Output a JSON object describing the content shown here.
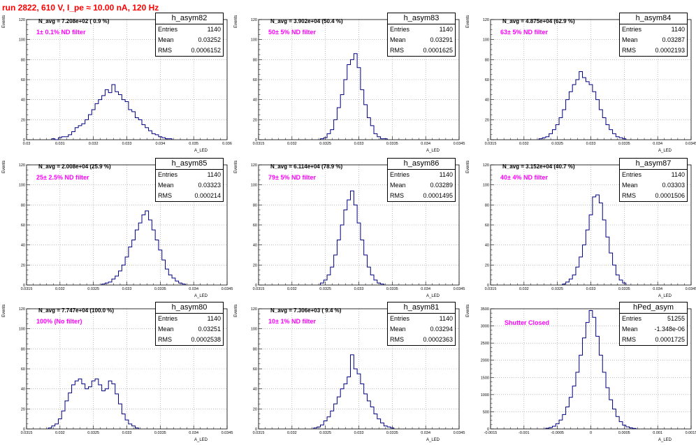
{
  "header": {
    "run_title": "run 2822,   610 V, I_pe ≈ 10.00 nA, 120 Hz"
  },
  "panels": [
    {
      "stats_title": "h_asym82",
      "navg": "N_avg = 7.208e+02 ( 0.9 %)",
      "filter": "1± 0.1% ND filter",
      "entries_label": "Entries",
      "entries": "1140",
      "mean_label": "Mean",
      "mean": "0.03252",
      "rms_label": "RMS",
      "rms": "0.0006152",
      "ylabel": "Events",
      "xlabel": "A_LED"
    },
    {
      "stats_title": "h_asym83",
      "navg": "N_avg = 3.902e+04 (50.4 %)",
      "filter": "50± 5% ND filter",
      "entries_label": "Entries",
      "entries": "1140",
      "mean_label": "Mean",
      "mean": "0.03291",
      "rms_label": "RMS",
      "rms": "0.0001625",
      "ylabel": "Events",
      "xlabel": "A_LED"
    },
    {
      "stats_title": "h_asym84",
      "navg": "N_avg = 4.875e+04 (62.9 %)",
      "filter": "63± 5% ND filter",
      "entries_label": "Entries",
      "entries": "1140",
      "mean_label": "Mean",
      "mean": "0.03287",
      "rms_label": "RMS",
      "rms": "0.0002193",
      "ylabel": "Events",
      "xlabel": "A_LED"
    },
    {
      "stats_title": "h_asym85",
      "navg": "N_avg = 2.008e+04 (25.9 %)",
      "filter": "25± 2.5% ND filter",
      "entries_label": "Entries",
      "entries": "1140",
      "mean_label": "Mean",
      "mean": "0.03323",
      "rms_label": "RMS",
      "rms": "0.000214",
      "ylabel": "Events",
      "xlabel": "A_LED"
    },
    {
      "stats_title": "h_asym86",
      "navg": "N_avg = 6.114e+04 (78.9 %)",
      "filter": "79± 5% ND filter",
      "entries_label": "Entries",
      "entries": "1140",
      "mean_label": "Mean",
      "mean": "0.03289",
      "rms_label": "RMS",
      "rms": "0.0001495",
      "ylabel": "Events",
      "xlabel": "A_LED"
    },
    {
      "stats_title": "h_asym87",
      "navg": "N_avg = 3.152e+04 (40.7 %)",
      "filter": "40± 4% ND filter",
      "entries_label": "Entries",
      "entries": "1140",
      "mean_label": "Mean",
      "mean": "0.03303",
      "rms_label": "RMS",
      "rms": "0.0001506",
      "ylabel": "Events",
      "xlabel": "A_LED"
    },
    {
      "stats_title": "h_asym80",
      "navg": "N_avg = 7.747e+04 (100.0 %)",
      "filter": "100% (No filter)",
      "entries_label": "Entries",
      "entries": "1140",
      "mean_label": "Mean",
      "mean": "0.03251",
      "rms_label": "RMS",
      "rms": "0.0002538",
      "ylabel": "Events",
      "xlabel": "A_LED"
    },
    {
      "stats_title": "h_asym81",
      "navg": "N_avg = 7.306e+03 ( 9.4 %)",
      "filter": "10± 1% ND filter",
      "entries_label": "Entries",
      "entries": "1140",
      "mean_label": "Mean",
      "mean": "0.03294",
      "rms_label": "RMS",
      "rms": "0.0002363",
      "ylabel": "Events",
      "xlabel": "A_LED"
    },
    {
      "stats_title": "hPed_asym",
      "navg": "",
      "filter": "Shutter Closed",
      "entries_label": "Entries",
      "entries": "51255",
      "mean_label": "Mean",
      "mean": "-1.348e-06",
      "rms_label": "RMS",
      "rms": "0.0001725",
      "ylabel": "Events",
      "xlabel": "A_LED"
    }
  ],
  "chart_data": [
    {
      "type": "bar",
      "name": "h_asym82",
      "xlim": [
        0.03,
        0.036
      ],
      "ylim": [
        0,
        120
      ],
      "xticks": [
        0.03,
        0.031,
        0.032,
        0.033,
        0.034,
        0.035,
        0.036
      ],
      "xtick_labels": [
        "0.03",
        "0.031",
        "0.032",
        "0.033",
        "0.034",
        "0.035",
        "0.036"
      ],
      "yticks": [
        0,
        20,
        40,
        60,
        80,
        100,
        120
      ],
      "grid": true,
      "color": "#000080",
      "bins": {
        "x": [
          0.0308,
          0.0309,
          0.031,
          0.0311,
          0.0312,
          0.0313,
          0.0314,
          0.0315,
          0.0316,
          0.0317,
          0.0318,
          0.0319,
          0.032,
          0.0321,
          0.0322,
          0.0323,
          0.0324,
          0.0325,
          0.0326,
          0.0327,
          0.0328,
          0.0329,
          0.033,
          0.0331,
          0.0332,
          0.0333,
          0.0334,
          0.0335,
          0.0336,
          0.0337,
          0.0338,
          0.0339,
          0.034,
          0.0341,
          0.0342,
          0.0343
        ],
        "y": [
          1,
          0,
          2,
          3,
          3,
          5,
          8,
          12,
          14,
          16,
          20,
          25,
          30,
          36,
          40,
          44,
          50,
          47,
          55,
          48,
          45,
          40,
          38,
          30,
          28,
          22,
          20,
          15,
          12,
          9,
          6,
          5,
          3,
          2,
          1,
          1
        ]
      }
    },
    {
      "type": "bar",
      "name": "h_asym83",
      "xlim": [
        0.0315,
        0.0345
      ],
      "ylim": [
        0,
        120
      ],
      "xticks": [
        0.0315,
        0.032,
        0.0325,
        0.033,
        0.0335,
        0.034,
        0.0345
      ],
      "xtick_labels": [
        "0.0315",
        "0.032",
        "0.0325",
        "0.033",
        "0.0335",
        "0.034",
        "0.0345"
      ],
      "yticks": [
        0,
        20,
        40,
        60,
        80,
        100,
        120
      ],
      "grid": true,
      "color": "#000080",
      "bins": {
        "x": [
          0.03245,
          0.0325,
          0.03255,
          0.0326,
          0.03265,
          0.0327,
          0.03275,
          0.0328,
          0.03285,
          0.0329,
          0.03295,
          0.033,
          0.03305,
          0.0331,
          0.03315,
          0.0332,
          0.03325,
          0.0333,
          0.03335,
          0.0334
        ],
        "y": [
          1,
          2,
          6,
          10,
          20,
          32,
          45,
          60,
          75,
          80,
          86,
          72,
          50,
          35,
          22,
          14,
          6,
          3,
          1,
          1
        ]
      }
    },
    {
      "type": "bar",
      "name": "h_asym84",
      "xlim": [
        0.0315,
        0.0345
      ],
      "ylim": [
        0,
        120
      ],
      "xticks": [
        0.0315,
        0.032,
        0.0325,
        0.033,
        0.0335,
        0.034,
        0.0345
      ],
      "xtick_labels": [
        "0.0315",
        "0.032",
        "0.0325",
        "0.033",
        "0.0335",
        "0.034",
        "0.0345"
      ],
      "yticks": [
        0,
        20,
        40,
        60,
        80,
        100,
        120
      ],
      "grid": true,
      "color": "#000080",
      "bins": {
        "x": [
          0.03225,
          0.0323,
          0.03235,
          0.0324,
          0.03245,
          0.0325,
          0.03255,
          0.0326,
          0.03265,
          0.0327,
          0.03275,
          0.0328,
          0.03285,
          0.0329,
          0.03295,
          0.033,
          0.03305,
          0.0331,
          0.03315,
          0.0332,
          0.03325,
          0.0333,
          0.03335,
          0.0334,
          0.03345,
          0.0335
        ],
        "y": [
          1,
          2,
          3,
          6,
          10,
          15,
          22,
          30,
          40,
          48,
          55,
          60,
          68,
          62,
          58,
          55,
          48,
          40,
          30,
          22,
          15,
          10,
          6,
          3,
          2,
          1
        ]
      }
    },
    {
      "type": "bar",
      "name": "h_asym85",
      "xlim": [
        0.0315,
        0.0345
      ],
      "ylim": [
        0,
        120
      ],
      "xticks": [
        0.0315,
        0.032,
        0.0325,
        0.033,
        0.0335,
        0.034,
        0.0345
      ],
      "xtick_labels": [
        "0.0315",
        "0.032",
        "0.0325",
        "0.033",
        "0.0335",
        "0.034",
        "0.0345"
      ],
      "yticks": [
        0,
        20,
        40,
        60,
        80,
        100,
        120
      ],
      "grid": true,
      "color": "#000080",
      "bins": {
        "x": [
          0.03265,
          0.0327,
          0.03275,
          0.0328,
          0.03285,
          0.0329,
          0.03295,
          0.033,
          0.03305,
          0.0331,
          0.03315,
          0.0332,
          0.03325,
          0.0333,
          0.03335,
          0.0334,
          0.03345,
          0.0335,
          0.03355,
          0.0336,
          0.03365,
          0.0337,
          0.03375,
          0.0338,
          0.03385
        ],
        "y": [
          1,
          2,
          3,
          6,
          9,
          14,
          20,
          28,
          38,
          45,
          55,
          62,
          70,
          74,
          65,
          55,
          45,
          35,
          25,
          16,
          10,
          7,
          4,
          2,
          1
        ]
      }
    },
    {
      "type": "bar",
      "name": "h_asym86",
      "xlim": [
        0.0315,
        0.0345
      ],
      "ylim": [
        0,
        120
      ],
      "xticks": [
        0.0315,
        0.032,
        0.0325,
        0.033,
        0.0335,
        0.034,
        0.0345
      ],
      "xtick_labels": [
        "0.0315",
        "0.032",
        "0.0325",
        "0.033",
        "0.0335",
        "0.034",
        "0.0345"
      ],
      "yticks": [
        0,
        20,
        40,
        60,
        80,
        100,
        120
      ],
      "grid": true,
      "color": "#000080",
      "bins": {
        "x": [
          0.03245,
          0.0325,
          0.03255,
          0.0326,
          0.03265,
          0.0327,
          0.03275,
          0.0328,
          0.03285,
          0.0329,
          0.03295,
          0.033,
          0.03305,
          0.0331,
          0.03315,
          0.0332,
          0.03325,
          0.0333,
          0.03335
        ],
        "y": [
          2,
          5,
          10,
          18,
          30,
          45,
          60,
          75,
          85,
          94,
          80,
          62,
          45,
          30,
          18,
          10,
          5,
          2,
          1
        ]
      }
    },
    {
      "type": "bar",
      "name": "h_asym87",
      "xlim": [
        0.0315,
        0.0345
      ],
      "ylim": [
        0,
        120
      ],
      "xticks": [
        0.0315,
        0.032,
        0.0325,
        0.033,
        0.0335,
        0.034,
        0.0345
      ],
      "xtick_labels": [
        "0.0315",
        "0.032",
        "0.0325",
        "0.033",
        "0.0335",
        "0.034",
        "0.0345"
      ],
      "yticks": [
        0,
        20,
        40,
        60,
        80,
        100,
        120
      ],
      "grid": true,
      "color": "#000080",
      "bins": {
        "x": [
          0.0326,
          0.03265,
          0.0327,
          0.03275,
          0.0328,
          0.03285,
          0.0329,
          0.03295,
          0.033,
          0.03305,
          0.0331,
          0.03315,
          0.0332,
          0.03325,
          0.0333,
          0.03335,
          0.0334,
          0.03345,
          0.0335
        ],
        "y": [
          1,
          3,
          6,
          10,
          18,
          28,
          40,
          55,
          70,
          88,
          90,
          82,
          65,
          48,
          32,
          20,
          10,
          5,
          2
        ]
      }
    },
    {
      "type": "bar",
      "name": "h_asym80",
      "xlim": [
        0.0315,
        0.0345
      ],
      "ylim": [
        0,
        120
      ],
      "xticks": [
        0.0315,
        0.032,
        0.0325,
        0.033,
        0.0335,
        0.034,
        0.0345
      ],
      "xtick_labels": [
        "0.0315",
        "0.032",
        "0.0325",
        "0.033",
        "0.0335",
        "0.034",
        "0.0345"
      ],
      "yticks": [
        0,
        20,
        40,
        60,
        80,
        100,
        120
      ],
      "grid": true,
      "color": "#000080",
      "bins": {
        "x": [
          0.03185,
          0.0319,
          0.03195,
          0.032,
          0.03205,
          0.0321,
          0.03215,
          0.0322,
          0.03225,
          0.0323,
          0.03235,
          0.0324,
          0.03245,
          0.0325,
          0.03255,
          0.0326,
          0.03265,
          0.0327,
          0.03275,
          0.0328,
          0.03285,
          0.0329,
          0.03295,
          0.033,
          0.03305,
          0.0331,
          0.03315
        ],
        "y": [
          1,
          3,
          5,
          10,
          18,
          28,
          36,
          44,
          48,
          50,
          45,
          40,
          42,
          48,
          50,
          44,
          38,
          40,
          48,
          45,
          35,
          25,
          15,
          9,
          5,
          3,
          1
        ]
      }
    },
    {
      "type": "bar",
      "name": "h_asym81",
      "xlim": [
        0.0315,
        0.0345
      ],
      "ylim": [
        0,
        120
      ],
      "xticks": [
        0.0315,
        0.032,
        0.0325,
        0.033,
        0.0335,
        0.034,
        0.0345
      ],
      "xtick_labels": [
        "0.0315",
        "0.032",
        "0.0325",
        "0.033",
        "0.0335",
        "0.034",
        "0.0345"
      ],
      "yticks": [
        0,
        20,
        40,
        60,
        80,
        100,
        120
      ],
      "grid": true,
      "color": "#000080",
      "bins": {
        "x": [
          0.03235,
          0.0324,
          0.03245,
          0.0325,
          0.03255,
          0.0326,
          0.03265,
          0.0327,
          0.03275,
          0.0328,
          0.03285,
          0.0329,
          0.03295,
          0.033,
          0.03305,
          0.0331,
          0.03315,
          0.0332,
          0.03325,
          0.0333,
          0.03335,
          0.0334,
          0.03345,
          0.0335
        ],
        "y": [
          1,
          2,
          4,
          8,
          12,
          18,
          25,
          32,
          40,
          45,
          52,
          74,
          60,
          55,
          45,
          35,
          28,
          22,
          15,
          10,
          6,
          3,
          2,
          1
        ]
      }
    },
    {
      "type": "bar",
      "name": "hPed_asym",
      "xlim": [
        -0.0015,
        0.0015
      ],
      "ylim": [
        0,
        3500
      ],
      "xticks": [
        -0.0015,
        -0.001,
        -0.0005,
        0,
        0.0005,
        0.001,
        0.0015
      ],
      "xtick_labels": [
        "-0.0015",
        "-0.001",
        "-0.0005",
        "0",
        "0.0005",
        "0.001",
        "0.0015"
      ],
      "yticks": [
        0,
        500,
        1000,
        1500,
        2000,
        2500,
        3000,
        3500
      ],
      "grid": true,
      "color": "#000080",
      "bins": {
        "x": [
          -0.00065,
          -0.0006,
          -0.00055,
          -0.0005,
          -0.00045,
          -0.0004,
          -0.00035,
          -0.0003,
          -0.00025,
          -0.0002,
          -0.00015,
          -0.0001,
          -5e-05,
          0.0,
          5e-05,
          0.0001,
          0.00015,
          0.0002,
          0.00025,
          0.0003,
          0.00035,
          0.0004,
          0.00045,
          0.0005,
          0.00055,
          0.0006,
          0.00065
        ],
        "y": [
          20,
          40,
          80,
          150,
          260,
          420,
          640,
          920,
          1250,
          1650,
          2150,
          2650,
          3100,
          3450,
          3250,
          2700,
          2150,
          1650,
          1200,
          850,
          580,
          360,
          210,
          110,
          60,
          30,
          15
        ]
      }
    }
  ]
}
